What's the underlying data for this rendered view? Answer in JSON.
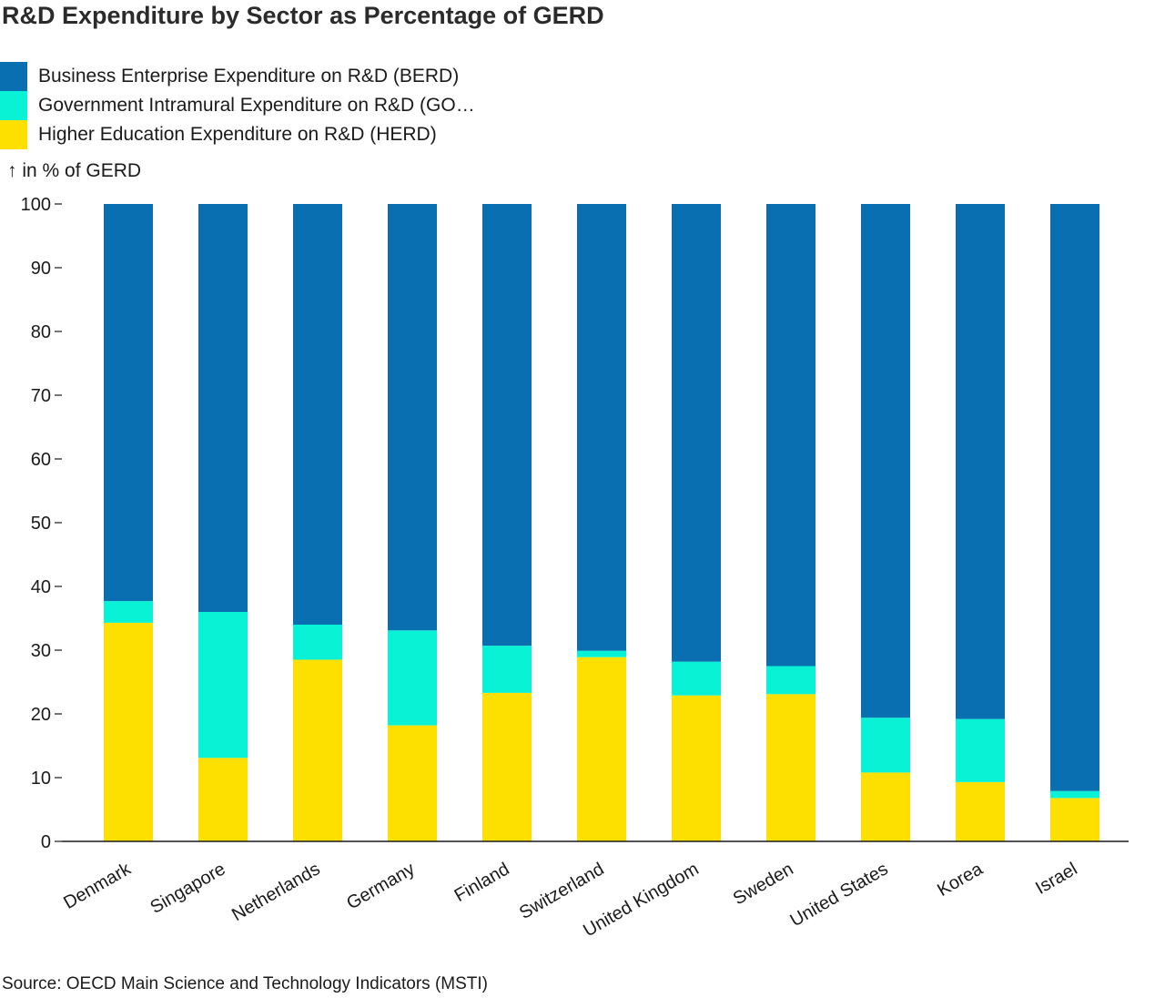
{
  "title": "R&D Expenditure by Sector as Percentage of GERD",
  "y_unit_label": "↑ in % of GERD",
  "source": "Source: OECD Main Science and Technology Indicators (MSTI)",
  "legend": [
    {
      "label": "Business Enterprise Expenditure on R&D (BERD)",
      "color": "#0a6fb0"
    },
    {
      "label": "Government Intramural Expenditure on R&D (GO…",
      "color": "#0af2d6"
    },
    {
      "label": "Higher Education Expenditure on R&D (HERD)",
      "color": "#fde000"
    }
  ],
  "chart_data": {
    "type": "bar",
    "stacked": true,
    "categories": [
      "Denmark",
      "Singapore",
      "Netherlands",
      "Germany",
      "Finland",
      "Switzerland",
      "United Kingdom",
      "Sweden",
      "United States",
      "Korea",
      "Israel"
    ],
    "series": [
      {
        "name": "Higher Education Expenditure on R&D (HERD)",
        "color": "#fde000",
        "values": [
          34.3,
          13.1,
          28.5,
          18.2,
          23.3,
          28.9,
          22.9,
          23.1,
          10.8,
          9.3,
          6.8
        ]
      },
      {
        "name": "Government Intramural Expenditure on R&D (GOVERD)",
        "color": "#0af2d6",
        "values": [
          3.4,
          22.9,
          5.5,
          14.9,
          7.4,
          1.0,
          5.3,
          4.4,
          8.6,
          9.9,
          1.1
        ]
      },
      {
        "name": "Business Enterprise Expenditure on R&D (BERD)",
        "color": "#0a6fb0",
        "values": [
          62.3,
          64.0,
          66.0,
          66.9,
          69.3,
          70.1,
          71.8,
          72.5,
          80.6,
          80.8,
          92.1
        ]
      }
    ],
    "ylabel": "in % of GERD",
    "ylim": [
      0,
      100
    ],
    "yticks": [
      0,
      10,
      20,
      30,
      40,
      50,
      60,
      70,
      80,
      90,
      100
    ],
    "grid": false,
    "legend_position": "top-left"
  }
}
